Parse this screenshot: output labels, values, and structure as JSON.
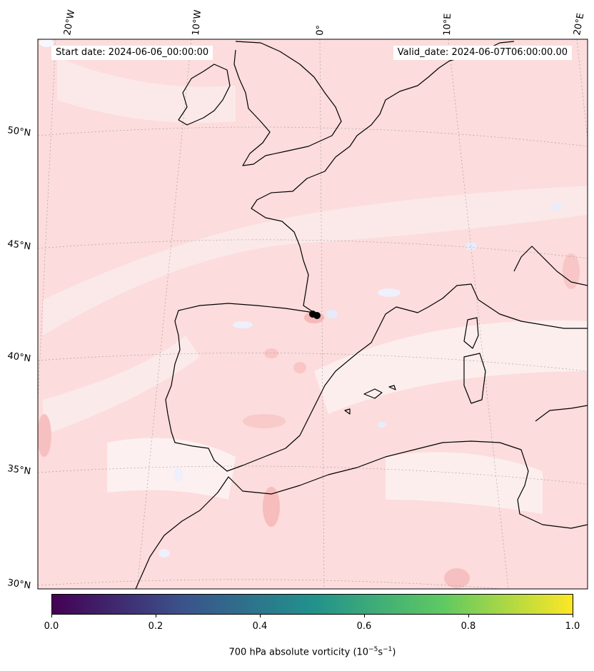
{
  "map": {
    "start_date": "Start date: 2024-06-06_00:00:00",
    "valid_date": "Valid_date: 2024-06-07T06:00:00.00",
    "lon_labels": [
      "20°W",
      "10°W",
      "0°",
      "10°E",
      "20°E"
    ],
    "lat_labels": [
      "50°N",
      "45°N",
      "40°N",
      "35°N",
      "30°N"
    ],
    "colorbar": {
      "title": "700 hPa absolute vorticity (10",
      "title_exp1": "−5",
      "title_mid": "s",
      "title_exp2": "−1",
      "title_end": ")",
      "ticks": [
        "0.0",
        "0.2",
        "0.4",
        "0.6",
        "0.8",
        "1.0"
      ],
      "colors": [
        "#440154",
        "#3b528b",
        "#21918c",
        "#5ec962",
        "#fde725"
      ]
    },
    "field_colors": {
      "background": "#fcdcdc",
      "light": "#fbecec",
      "strong": "#f9c4c4",
      "negative": "#eef1fc"
    },
    "marker_color": "#000000"
  }
}
